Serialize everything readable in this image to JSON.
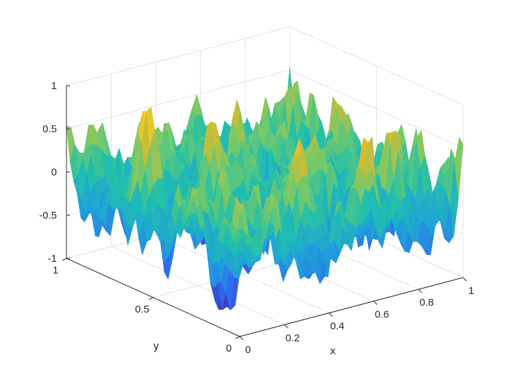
{
  "chart_data": {
    "type": "surface",
    "title": "",
    "xlabel": "x",
    "ylabel": "y",
    "zlabel": "",
    "xlim": [
      0,
      1
    ],
    "ylim": [
      0,
      1
    ],
    "zlim": [
      -1,
      1
    ],
    "x_ticks": [
      {
        "value": 0,
        "label": "0"
      },
      {
        "value": 0.2,
        "label": "0.2"
      },
      {
        "value": 0.4,
        "label": "0.4"
      },
      {
        "value": 0.6,
        "label": "0.6"
      },
      {
        "value": 0.8,
        "label": "0.8"
      },
      {
        "value": 1,
        "label": "1"
      }
    ],
    "y_ticks": [
      {
        "value": 0,
        "label": "0"
      },
      {
        "value": 0.5,
        "label": "0.5"
      },
      {
        "value": 1,
        "label": "1"
      }
    ],
    "z_ticks": [
      {
        "value": -1,
        "label": "-1"
      },
      {
        "value": -0.5,
        "label": "-0.5"
      },
      {
        "value": 0,
        "label": "0"
      },
      {
        "value": 0.5,
        "label": "0.5"
      },
      {
        "value": 1,
        "label": "1"
      }
    ],
    "grid": true,
    "colormap": [
      "#3e26a8",
      "#2f6cf1",
      "#1fa2d8",
      "#20c0ac",
      "#7cc964",
      "#d8ba2f",
      "#f9d828"
    ],
    "edge_color": "#262626",
    "grid_color": "#e3e3e3",
    "surface": {
      "resolution": 48,
      "description_of_values": "rough random surface, z in [-1, 1]",
      "components": [
        {
          "fx": 2,
          "fy": 3,
          "amp": 0.3,
          "phase": 0.4
        },
        {
          "fx": 5,
          "fy": 1,
          "amp": 0.22,
          "phase": 1.7
        },
        {
          "fx": 3,
          "fy": 6,
          "amp": 0.18,
          "phase": 2.9
        },
        {
          "fx": 7,
          "fy": 4,
          "amp": 0.15,
          "phase": 0.9
        },
        {
          "fx": 9,
          "fy": 8,
          "amp": 0.12,
          "phase": 4.1
        },
        {
          "fx": 11,
          "fy": 3,
          "amp": 0.1,
          "phase": 5.3
        },
        {
          "fx": 4,
          "fy": 12,
          "amp": 0.1,
          "phase": 2.2
        },
        {
          "fx": 14,
          "fy": 10,
          "amp": 0.07,
          "phase": 3.6
        },
        {
          "fx": 17,
          "fy": 15,
          "amp": 0.05,
          "phase": 1.1
        }
      ]
    }
  }
}
